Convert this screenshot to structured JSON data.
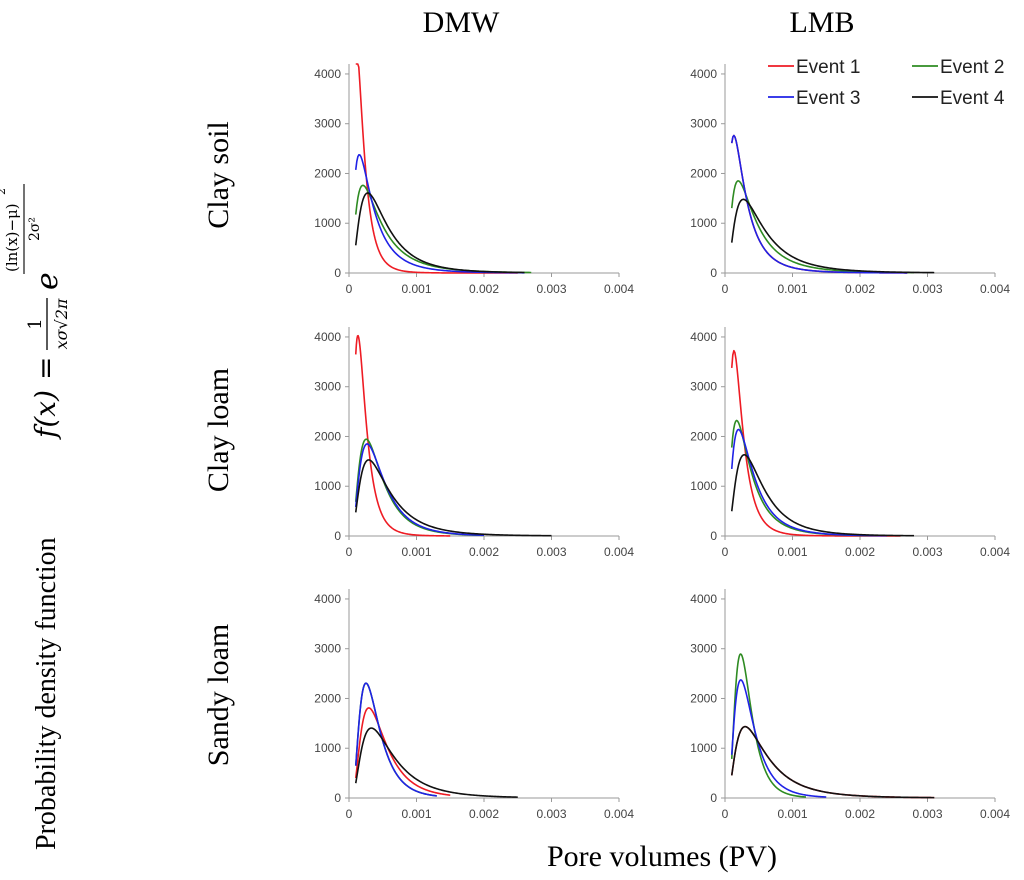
{
  "ylabel_prefix": "Probability density function",
  "formula": {
    "lhs": "f(x)",
    "equals": "=",
    "numerator": "1",
    "denominator": "xσ√2π",
    "base": "e",
    "exp_numerator": "(ln(x)−μ)",
    "exp_power": "2",
    "exp_denominator": "2σ²"
  },
  "xlabel": "Pore volumes (PV)",
  "columns": [
    "DMW",
    "LMB"
  ],
  "rows": [
    "Clay soil",
    "Clay loam",
    "Sandy loam"
  ],
  "series_colors": {
    "Event 1": "#ee1c24",
    "Event 2": "#2e8b22",
    "Event 3": "#1f22e6",
    "Event 4": "#111111"
  },
  "chart_data": {
    "type": "line",
    "x_ticks": [
      "0",
      "0.001",
      "0.002",
      "0.003",
      "0.004"
    ],
    "y_ticks": [
      "0",
      "1000",
      "2000",
      "3000",
      "4000"
    ],
    "xlim": [
      0,
      0.004
    ],
    "ylim": [
      0,
      4200
    ],
    "legend": [
      "Event 1",
      "Event 2",
      "Event 3",
      "Event 4"
    ],
    "legend_placement": "top-right of LMB Clay soil panel",
    "panels": [
      {
        "id": "dmw-clay-soil",
        "column": "DMW",
        "row": "Clay soil",
        "series": [
          {
            "name": "Event 1",
            "mu": -8.7,
            "sigma": 0.65,
            "xmin": 0.0001,
            "xmax": 0.0025
          },
          {
            "name": "Event 2",
            "mu": -7.85,
            "sigma": 0.8,
            "xmin": 0.0001,
            "xmax": 0.0027
          },
          {
            "name": "Event 3",
            "mu": -8.15,
            "sigma": 0.8,
            "xmin": 0.0001,
            "xmax": 0.0026
          },
          {
            "name": "Event 4",
            "mu": -7.7,
            "sigma": 0.7,
            "xmin": 0.0001,
            "xmax": 0.0026
          }
        ]
      },
      {
        "id": "lmb-clay-soil",
        "column": "LMB",
        "row": "Clay soil",
        "series": [
          {
            "name": "Event 1",
            "mu": -8.3,
            "sigma": 0.8,
            "xmin": 0.0001,
            "xmax": 0.0027
          },
          {
            "name": "Event 2",
            "mu": -7.9,
            "sigma": 0.8,
            "xmin": 0.0001,
            "xmax": 0.0028
          },
          {
            "name": "Event 3",
            "mu": -8.3,
            "sigma": 0.8,
            "xmin": 0.0001,
            "xmax": 0.0027
          },
          {
            "name": "Event 4",
            "mu": -7.65,
            "sigma": 0.75,
            "xmin": 0.0001,
            "xmax": 0.0031
          }
        ]
      },
      {
        "id": "dmw-clay-loam",
        "column": "DMW",
        "row": "Clay loam",
        "series": [
          {
            "name": "Event 1",
            "mu": -8.55,
            "sigma": 0.62,
            "xmin": 0.0001,
            "xmax": 0.0015
          },
          {
            "name": "Event 2",
            "mu": -7.85,
            "sigma": 0.65,
            "xmin": 0.0001,
            "xmax": 0.002
          },
          {
            "name": "Event 3",
            "mu": -7.8,
            "sigma": 0.65,
            "xmin": 0.0001,
            "xmax": 0.002
          },
          {
            "name": "Event 4",
            "mu": -7.65,
            "sigma": 0.7,
            "xmin": 0.0001,
            "xmax": 0.003
          }
        ]
      },
      {
        "id": "lmb-clay-loam",
        "column": "LMB",
        "row": "Clay loam",
        "series": [
          {
            "name": "Event 1",
            "mu": -8.5,
            "sigma": 0.65,
            "xmin": 0.0001,
            "xmax": 0.0026
          },
          {
            "name": "Event 2",
            "mu": -8.1,
            "sigma": 0.75,
            "xmin": 0.0001,
            "xmax": 0.0024
          },
          {
            "name": "Event 3",
            "mu": -8.0,
            "sigma": 0.72,
            "xmin": 0.0001,
            "xmax": 0.0024
          },
          {
            "name": "Event 4",
            "mu": -7.7,
            "sigma": 0.68,
            "xmin": 0.0001,
            "xmax": 0.0028
          }
        ]
      },
      {
        "id": "dmw-sandy-loam",
        "column": "DMW",
        "row": "Sandy loam",
        "series": [
          {
            "name": "Event 1",
            "mu": -7.75,
            "sigma": 0.62,
            "xmin": 0.0001,
            "xmax": 0.0015
          },
          {
            "name": "Event 2",
            "mu": -7.95,
            "sigma": 0.58,
            "xmin": 0.0001,
            "xmax": 0.0013
          },
          {
            "name": "Event 3",
            "mu": -7.95,
            "sigma": 0.58,
            "xmin": 0.0001,
            "xmax": 0.0013
          },
          {
            "name": "Event 4",
            "mu": -7.55,
            "sigma": 0.68,
            "xmin": 0.0001,
            "xmax": 0.0025
          }
        ]
      },
      {
        "id": "lmb-sandy-loam",
        "column": "LMB",
        "row": "Sandy loam",
        "series": [
          {
            "name": "Event 1",
            "mu": -7.6,
            "sigma": 0.72,
            "xmin": 0.0001,
            "xmax": 0.0031
          },
          {
            "name": "Event 2",
            "mu": -8.1,
            "sigma": 0.52,
            "xmin": 0.0001,
            "xmax": 0.0012
          },
          {
            "name": "Event 3",
            "mu": -8.0,
            "sigma": 0.6,
            "xmin": 0.0001,
            "xmax": 0.0015
          },
          {
            "name": "Event 4",
            "mu": -7.6,
            "sigma": 0.72,
            "xmin": 0.0001,
            "xmax": 0.0031
          }
        ]
      }
    ]
  }
}
